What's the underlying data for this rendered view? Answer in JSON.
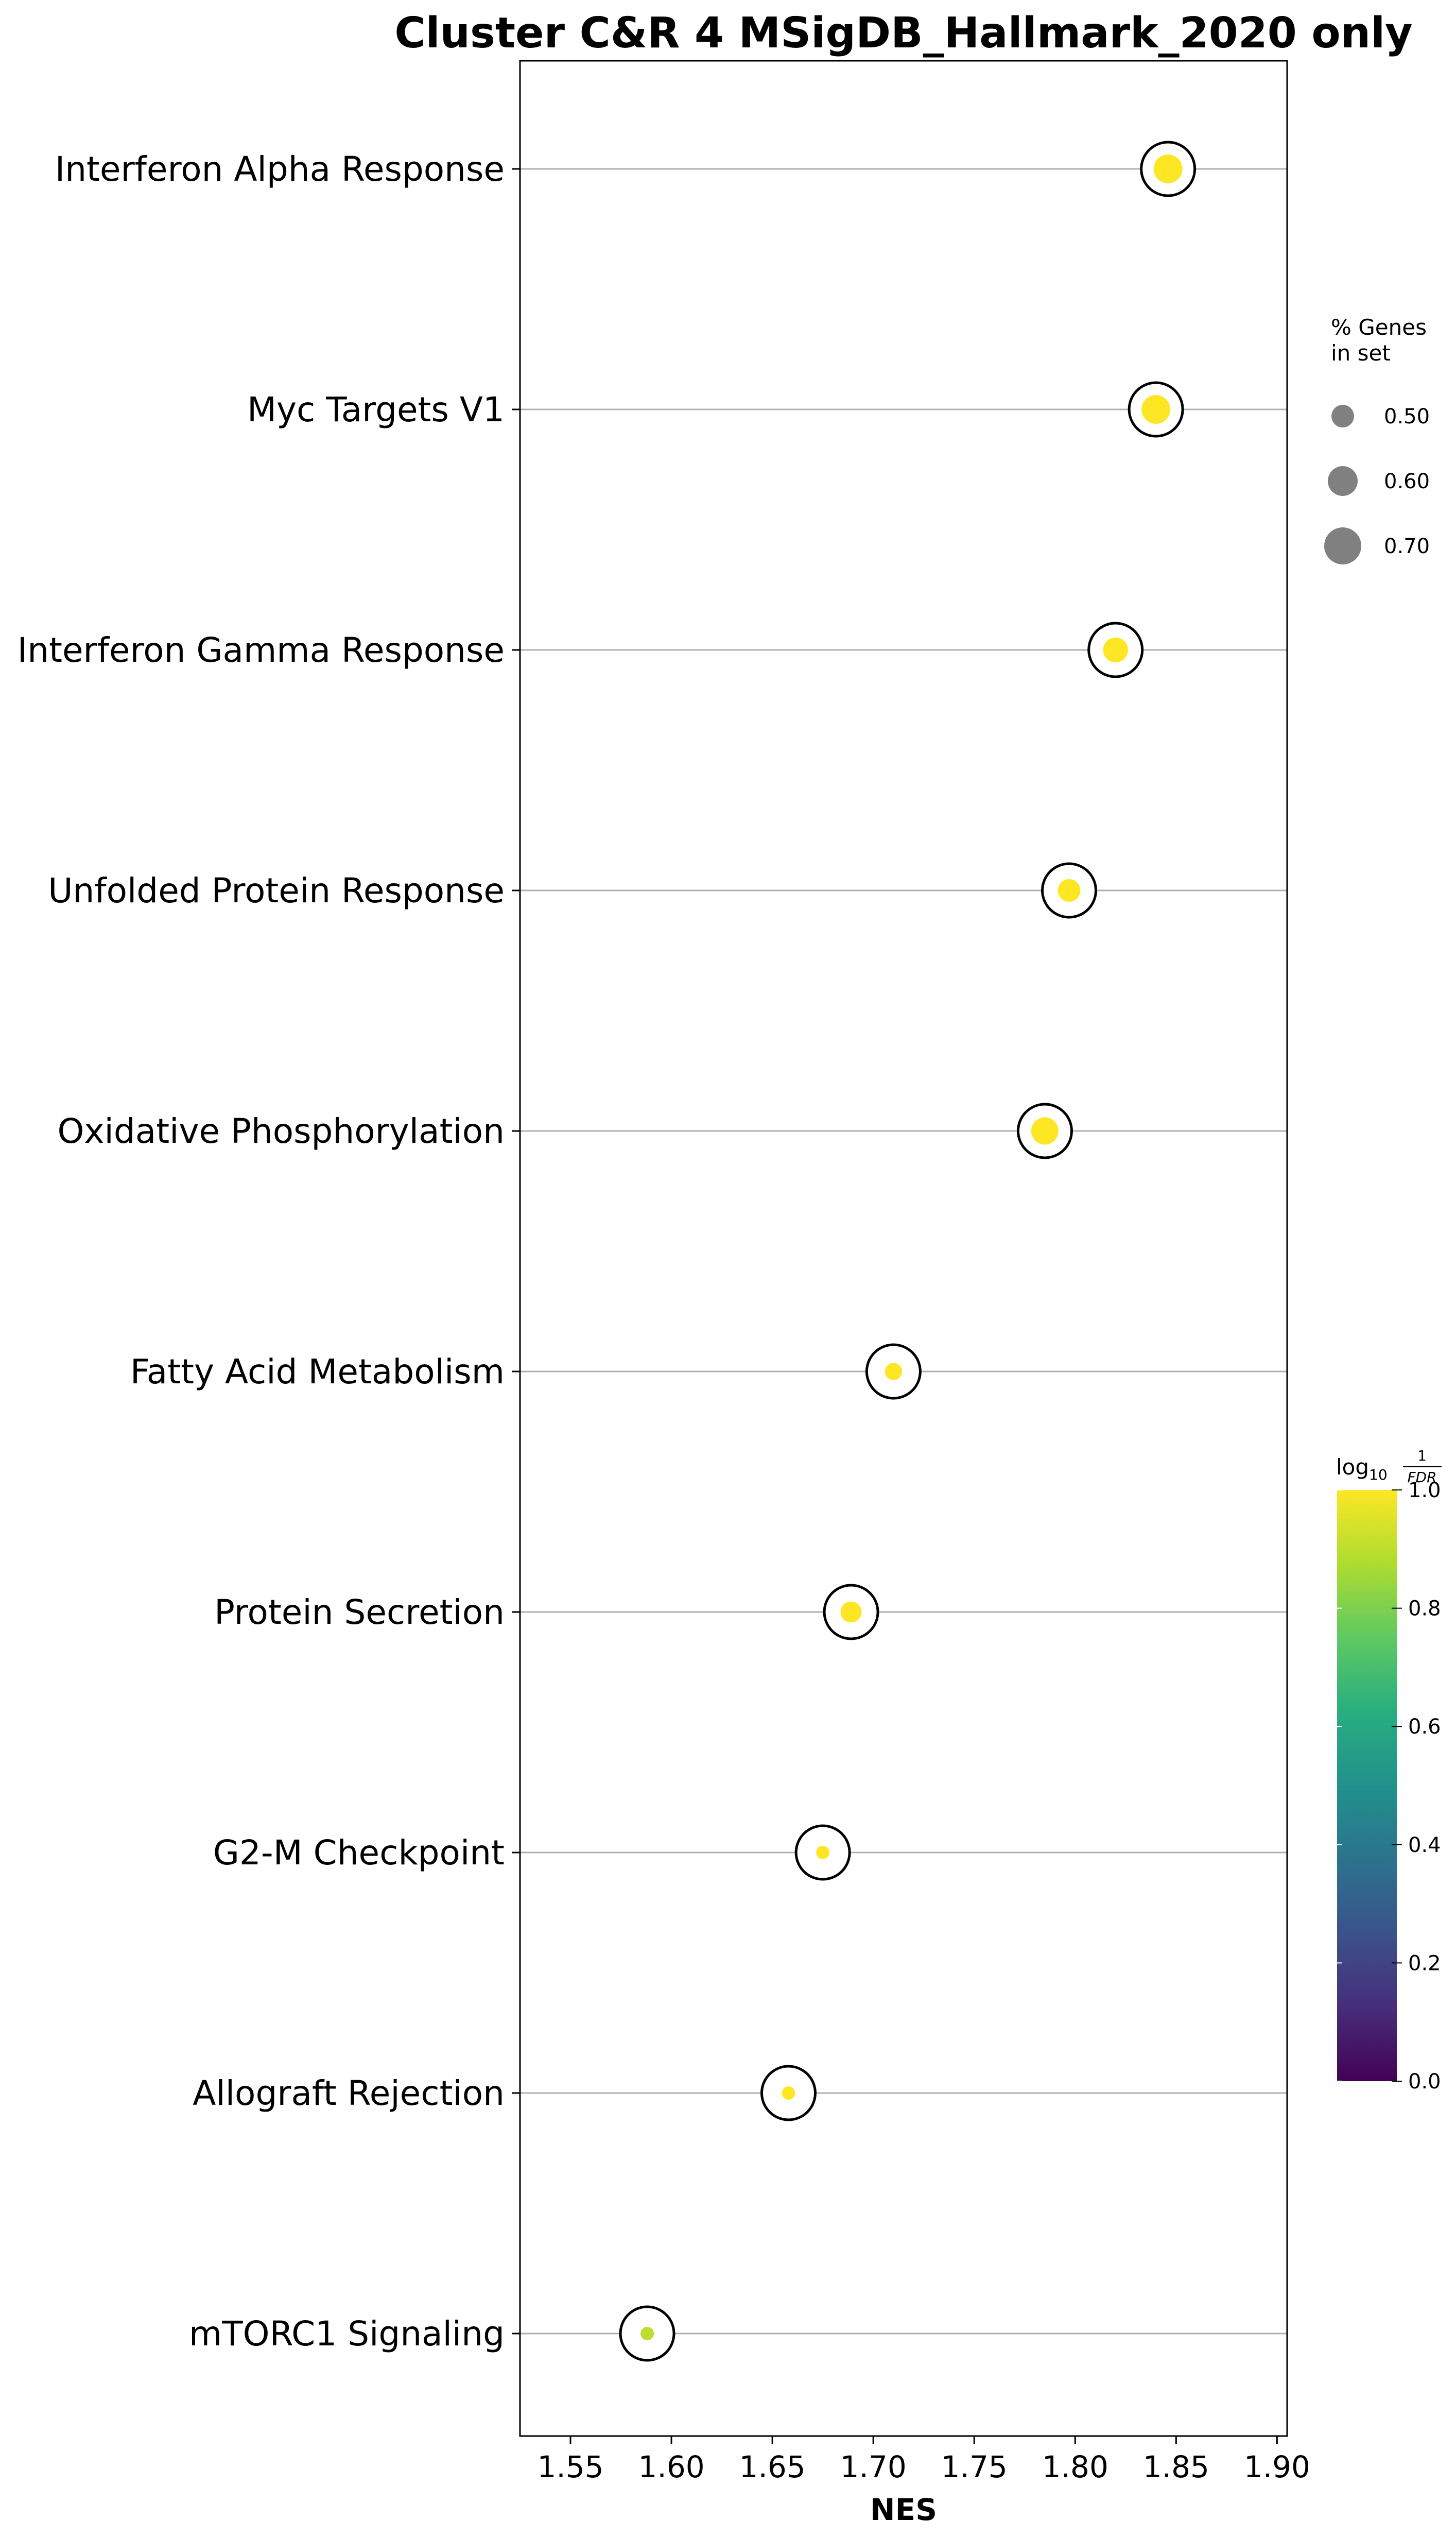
{
  "chart_data": {
    "type": "scatter",
    "title": "Cluster C&R 4 MSigDB_Hallmark_2020 only",
    "xlabel": "NES",
    "ylabel": "",
    "xlim": [
      1.525,
      1.905
    ],
    "xticks": [
      "1.55",
      "1.60",
      "1.65",
      "1.70",
      "1.75",
      "1.80",
      "1.85",
      "1.90"
    ],
    "categories": [
      "Interferon Alpha Response",
      "Myc Targets V1",
      "Interferon Gamma Response",
      "Unfolded Protein Response",
      "Oxidative Phosphorylation",
      "Fatty Acid Metabolism",
      "Protein Secretion",
      "G2-M Checkpoint",
      "Allograft Rejection",
      "mTORC1 Signaling"
    ],
    "series": [
      {
        "x": [
          1.846,
          1.84,
          1.82,
          1.797,
          1.785,
          1.71,
          1.689,
          1.675,
          1.658,
          1.588
        ],
        "gene_fraction": [
          0.7,
          0.7,
          0.65,
          0.62,
          0.68,
          0.55,
          0.6,
          0.5,
          0.5,
          0.5
        ],
        "log10_inv_fdr": [
          1.0,
          1.0,
          1.0,
          1.0,
          1.0,
          1.0,
          1.0,
          1.0,
          1.0,
          0.9
        ]
      }
    ],
    "size_legend": {
      "title_lines": [
        "% Genes",
        "in set"
      ],
      "labels": [
        "0.50",
        "0.60",
        "0.70"
      ],
      "values": [
        0.5,
        0.6,
        0.7
      ]
    },
    "colorbar": {
      "label": "log",
      "label_sub": "10",
      "frac_num": "1",
      "frac_den": "FDR",
      "ticks": [
        "0.0",
        "0.2",
        "0.4",
        "0.6",
        "0.8",
        "1.0"
      ],
      "tick_values": [
        0.0,
        0.2,
        0.4,
        0.6,
        0.8,
        1.0
      ],
      "range": [
        0.0,
        1.0
      ],
      "colormap": "viridis"
    },
    "grid": "horizontal",
    "legend_placement": "right",
    "colors": {
      "gridline": "#b0b0b0",
      "size_legend_marker": "#808080",
      "marker_outline": "#000000"
    }
  }
}
